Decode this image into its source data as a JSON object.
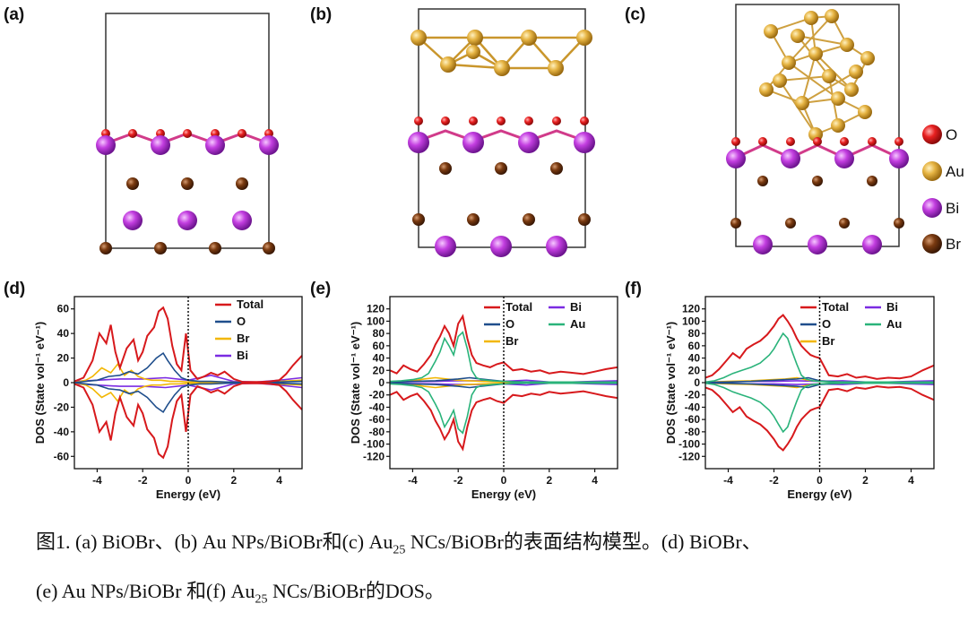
{
  "structure_panels": [
    {
      "label": "(a)"
    },
    {
      "label": "(b)"
    },
    {
      "label": "(c)"
    }
  ],
  "atom_legend": [
    {
      "symbol": "O",
      "color": "#e02020"
    },
    {
      "symbol": "Au",
      "color": "#e6b443"
    },
    {
      "symbol": "Bi",
      "color": "#c33ee0"
    },
    {
      "symbol": "Br",
      "color": "#7a3a10"
    }
  ],
  "chart_data": [
    {
      "type": "line",
      "label": "(d)",
      "xlabel": "Energy (eV)",
      "ylabel": "DOS (State vol⁻¹ eV⁻¹)",
      "xlim": [
        -5,
        5
      ],
      "ylim": [
        -70,
        70
      ],
      "xticks": [
        -4,
        -2,
        0,
        2,
        4
      ],
      "yticks": [
        -60,
        -40,
        -20,
        0,
        20,
        40,
        60
      ],
      "fermi_level": 0,
      "legend": [
        "Total",
        "O",
        "Br",
        "Bi"
      ],
      "series": [
        {
          "name": "Total",
          "color": "#d7191c",
          "x": [
            -5,
            -4.6,
            -4.2,
            -3.9,
            -3.6,
            -3.4,
            -3.2,
            -3.0,
            -2.7,
            -2.4,
            -2.2,
            -2.0,
            -1.8,
            -1.5,
            -1.3,
            -1.1,
            -0.9,
            -0.7,
            -0.5,
            -0.3,
            -0.1,
            0.1,
            0.4,
            0.7,
            1.0,
            1.3,
            1.6,
            2.0,
            2.4,
            2.8,
            3.2,
            3.6,
            4.0,
            4.3,
            4.6,
            5.0
          ],
          "y": [
            1,
            4,
            18,
            40,
            32,
            47,
            25,
            12,
            28,
            35,
            18,
            25,
            38,
            45,
            58,
            61,
            52,
            30,
            15,
            10,
            40,
            10,
            3,
            5,
            8,
            6,
            9,
            3,
            0.5,
            0.5,
            0.5,
            1,
            2,
            7,
            14,
            22
          ]
        },
        {
          "name": "O",
          "color": "#1f4e8c",
          "x": [
            -5,
            -4.5,
            -4,
            -3.5,
            -3,
            -2.6,
            -2.2,
            -1.8,
            -1.4,
            -1.1,
            -0.9,
            -0.6,
            -0.3,
            0,
            0.5,
            1,
            2,
            3,
            4,
            5
          ],
          "y": [
            0,
            1,
            2,
            5,
            6,
            9,
            7,
            12,
            20,
            24,
            18,
            10,
            4,
            2,
            1,
            1,
            0.3,
            0.2,
            0.5,
            1
          ]
        },
        {
          "name": "Br",
          "color": "#f2b705",
          "x": [
            -5,
            -4.5,
            -4.2,
            -3.8,
            -3.4,
            -3.1,
            -2.8,
            -2.5,
            -2.2,
            -1.9,
            -1.6,
            -1.2,
            -0.8,
            -0.4,
            0,
            0.5,
            1,
            2,
            3,
            4,
            5
          ],
          "y": [
            0,
            2,
            5,
            12,
            8,
            15,
            6,
            10,
            5,
            3,
            2,
            2,
            1,
            1,
            0.5,
            0.5,
            0.5,
            0.3,
            0.3,
            1,
            2
          ]
        },
        {
          "name": "Bi",
          "color": "#7b2be2",
          "x": [
            -5,
            -4,
            -3,
            -2,
            -1,
            0,
            1,
            2,
            3,
            4,
            5
          ],
          "y": [
            1,
            2,
            3,
            3,
            4,
            2,
            6,
            1,
            0.5,
            2,
            4
          ]
        }
      ]
    },
    {
      "type": "line",
      "label": "(e)",
      "xlabel": "Energy (eV)",
      "ylabel": "DOS (State vol⁻¹ eV⁻¹)",
      "xlim": [
        -5,
        5
      ],
      "ylim": [
        -140,
        140
      ],
      "xticks": [
        -4,
        -2,
        0,
        2,
        4
      ],
      "yticks": [
        -120,
        -100,
        -80,
        -60,
        -40,
        -20,
        0,
        20,
        40,
        60,
        80,
        100,
        120
      ],
      "fermi_level": 0,
      "legend": [
        "Total",
        "O",
        "Br",
        "Bi",
        "Au"
      ],
      "series": [
        {
          "name": "Total",
          "color": "#d7191c",
          "x": [
            -5,
            -4.7,
            -4.4,
            -4.1,
            -3.8,
            -3.5,
            -3.2,
            -3.0,
            -2.8,
            -2.6,
            -2.4,
            -2.2,
            -2.0,
            -1.8,
            -1.6,
            -1.4,
            -1.2,
            -0.9,
            -0.6,
            -0.3,
            0,
            0.4,
            0.8,
            1.2,
            1.6,
            2.0,
            2.5,
            3.0,
            3.5,
            4.0,
            4.5,
            5.0
          ],
          "y": [
            20,
            15,
            28,
            22,
            18,
            30,
            45,
            62,
            75,
            92,
            80,
            60,
            96,
            108,
            72,
            45,
            32,
            28,
            25,
            30,
            33,
            20,
            22,
            18,
            20,
            15,
            18,
            16,
            14,
            18,
            22,
            25
          ]
        },
        {
          "name": "Au",
          "color": "#2ab37a",
          "x": [
            -5,
            -4.5,
            -4,
            -3.6,
            -3.3,
            -3.0,
            -2.8,
            -2.6,
            -2.4,
            -2.2,
            -2.0,
            -1.8,
            -1.6,
            -1.4,
            -1.2,
            -1.0,
            -0.5,
            0,
            0.5,
            1,
            2,
            3,
            4,
            5
          ],
          "y": [
            2,
            3,
            5,
            8,
            15,
            35,
            50,
            72,
            60,
            45,
            75,
            82,
            55,
            20,
            8,
            5,
            3,
            2,
            1,
            1,
            1,
            1,
            1,
            1
          ]
        },
        {
          "name": "O",
          "color": "#1f4e8c",
          "x": [
            -5,
            -4,
            -3,
            -2,
            -1.5,
            -1,
            -0.5,
            0,
            1,
            2,
            3,
            4,
            5
          ],
          "y": [
            0.5,
            2,
            3,
            6,
            8,
            6,
            4,
            2,
            1,
            1,
            0.5,
            1,
            1
          ]
        },
        {
          "name": "Br",
          "color": "#f2b705",
          "x": [
            -5,
            -4,
            -3.5,
            -3,
            -2.5,
            -2,
            -1.5,
            -1,
            0,
            1,
            2,
            3,
            4,
            5
          ],
          "y": [
            0.5,
            3,
            6,
            8,
            6,
            4,
            3,
            2,
            1,
            0.5,
            0.5,
            0.5,
            1,
            1
          ]
        },
        {
          "name": "Bi",
          "color": "#7b2be2",
          "x": [
            -5,
            -4,
            -3,
            -2,
            -1,
            0,
            1,
            2,
            3,
            4,
            5
          ],
          "y": [
            1,
            1.5,
            2,
            3,
            3,
            2,
            4,
            1,
            1,
            2,
            3
          ]
        }
      ]
    },
    {
      "type": "line",
      "label": "(f)",
      "xlabel": "Energy (eV)",
      "ylabel": "DOS (State vol⁻¹ eV⁻¹)",
      "xlim": [
        -5,
        5
      ],
      "ylim": [
        -140,
        140
      ],
      "xticks": [
        -4,
        -2,
        0,
        2,
        4
      ],
      "yticks": [
        -120,
        -100,
        -80,
        -60,
        -40,
        -20,
        0,
        20,
        40,
        60,
        80,
        100,
        120
      ],
      "fermi_level": 0,
      "legend": [
        "Total",
        "O",
        "Br",
        "Bi",
        "Au"
      ],
      "series": [
        {
          "name": "Total",
          "color": "#d7191c",
          "x": [
            -5,
            -4.7,
            -4.4,
            -4.1,
            -3.8,
            -3.5,
            -3.2,
            -2.9,
            -2.6,
            -2.3,
            -2.0,
            -1.8,
            -1.6,
            -1.4,
            -1.2,
            -1.0,
            -0.8,
            -0.6,
            -0.4,
            -0.2,
            0,
            0.4,
            0.8,
            1.2,
            1.6,
            2.0,
            2.5,
            3.0,
            3.5,
            4.0,
            4.5,
            5.0
          ],
          "y": [
            8,
            12,
            22,
            35,
            48,
            40,
            55,
            62,
            68,
            78,
            92,
            104,
            110,
            100,
            88,
            72,
            60,
            52,
            45,
            42,
            40,
            12,
            10,
            14,
            8,
            10,
            6,
            8,
            7,
            10,
            20,
            28
          ]
        },
        {
          "name": "Au",
          "color": "#2ab37a",
          "x": [
            -5,
            -4.6,
            -4.2,
            -3.8,
            -3.4,
            -3.0,
            -2.6,
            -2.2,
            -2.0,
            -1.8,
            -1.6,
            -1.4,
            -1.2,
            -1.0,
            -0.8,
            -0.6,
            -0.3,
            0,
            0.5,
            1,
            2,
            3,
            4,
            5
          ],
          "y": [
            1,
            3,
            8,
            15,
            20,
            25,
            32,
            45,
            55,
            68,
            80,
            72,
            50,
            30,
            12,
            6,
            3,
            2,
            1,
            1,
            1,
            1,
            1,
            1
          ]
        },
        {
          "name": "O",
          "color": "#1f4e8c",
          "x": [
            -5,
            -4,
            -3,
            -2,
            -1.5,
            -1,
            -0.5,
            0,
            1,
            2,
            3,
            4,
            5
          ],
          "y": [
            0.5,
            1,
            2,
            4,
            5,
            6,
            8,
            3,
            1,
            1,
            0.5,
            1,
            1
          ]
        },
        {
          "name": "Br",
          "color": "#f2b705",
          "x": [
            -5,
            -4,
            -3,
            -2,
            -1.5,
            -1,
            -0.5,
            0,
            1,
            2,
            3,
            4,
            5
          ],
          "y": [
            0.5,
            2,
            3,
            5,
            6,
            8,
            4,
            2,
            1,
            0.5,
            0.5,
            1,
            1
          ]
        },
        {
          "name": "Bi",
          "color": "#7b2be2",
          "x": [
            -5,
            -4,
            -3,
            -2,
            -1,
            0,
            1,
            2,
            3,
            4,
            5
          ],
          "y": [
            1,
            1.5,
            2,
            2,
            3,
            2,
            3,
            1,
            1,
            2,
            3
          ]
        }
      ]
    }
  ],
  "caption": {
    "line1_a": "图1. (a) BiOBr、(b) Au NPs/BiOBr和(c) Au",
    "line1_sub1": "25",
    "line1_b": " NCs/BiOBr的表面结构模型。(d) BiOBr、",
    "line2_a": "(e) Au NPs/BiOBr 和(f) Au",
    "line2_sub": "25",
    "line2_b": " NCs/BiOBr的DOS。"
  }
}
